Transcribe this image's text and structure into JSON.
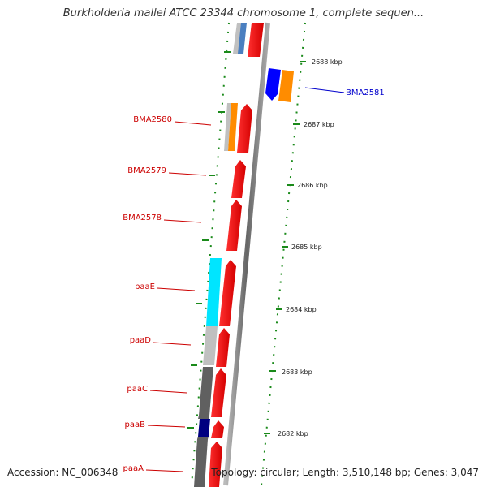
{
  "title": "Burkholderia mallei ATCC 23344 chromosome 1, complete sequen...",
  "footer": {
    "accession": "Accession: NC_006348",
    "summary": "Topology: circular; Length: 3,510,148 bp; Genes: 3,047"
  },
  "scale_ticks": [
    {
      "kbp": 2688,
      "label": "2688 kbp"
    },
    {
      "kbp": 2687,
      "label": "2687 kbp"
    },
    {
      "kbp": 2686,
      "label": "2686 kbp"
    },
    {
      "kbp": 2685,
      "label": "2685 kbp"
    },
    {
      "kbp": 2684,
      "label": "2684 kbp"
    },
    {
      "kbp": 2683,
      "label": "2683 kbp"
    },
    {
      "kbp": 2682,
      "label": "2682 kbp"
    }
  ],
  "gene_labels": [
    {
      "name": "BMA2581",
      "strand": "reverse"
    },
    {
      "name": "BMA2580",
      "strand": "forward"
    },
    {
      "name": "BMA2579",
      "strand": "forward"
    },
    {
      "name": "BMA2578",
      "strand": "forward"
    },
    {
      "name": "paaE",
      "strand": "forward"
    },
    {
      "name": "paaD",
      "strand": "forward"
    },
    {
      "name": "paaC",
      "strand": "forward"
    },
    {
      "name": "paaB",
      "strand": "forward"
    },
    {
      "name": "paaA",
      "strand": "forward"
    }
  ],
  "colors": {
    "forward_cds": "#ff0000",
    "reverse_cds": "#0000ff",
    "orange_track": "#ff8c00",
    "cyan_track": "#00e5ff",
    "light_gray_track": "#c0c0c0",
    "dark_gray_track": "#606060",
    "navy_track": "#000080",
    "backbone": "#888888",
    "gc_dots": "#1a8a1a",
    "forward_label": "#cc0000",
    "reverse_label": "#0000cc"
  }
}
